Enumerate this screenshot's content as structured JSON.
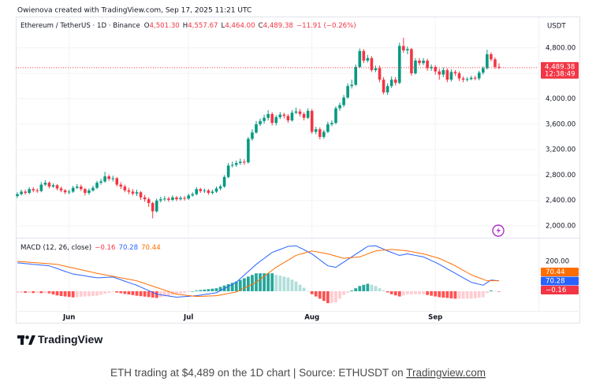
{
  "header": "Owienova created with TradingView.com, Sep 17, 2025 11:21 UTC",
  "chart_data": [
    {
      "type": "candlestick",
      "title": "Ethereum / TetherUS · 1D · Binance",
      "legend": [
        {
          "key": "O",
          "value": "4,501.30"
        },
        {
          "key": "H",
          "value": "4,557.67"
        },
        {
          "key": "L",
          "value": "4,464.00"
        },
        {
          "key": "C",
          "value": "4,489.38"
        }
      ],
      "change": "−11.91 (−0.26%)",
      "legend_color": "#f23645",
      "currency": "USDT",
      "colors": {
        "up": "#089981",
        "down": "#f23645"
      },
      "open": [
        2470,
        2500,
        2540,
        2520,
        2580,
        2560,
        2550,
        2650,
        2680,
        2620,
        2640,
        2590,
        2560,
        2530,
        2540,
        2600,
        2620,
        2580,
        2520,
        2560,
        2600,
        2680,
        2700,
        2780,
        2740,
        2750,
        2650,
        2620,
        2560,
        2540,
        2510,
        2530,
        2450,
        2420,
        2360,
        2230,
        2400,
        2420,
        2430,
        2410,
        2450,
        2420,
        2440,
        2430,
        2480,
        2500,
        2580,
        2550,
        2560,
        2520,
        2540,
        2590,
        2620,
        2770,
        2950,
        2960,
        2990,
        3010,
        3000,
        3370,
        3470,
        3600,
        3650,
        3700,
        3760,
        3620,
        3710,
        3750,
        3730,
        3660,
        3780,
        3800,
        3760,
        3700,
        3810,
        3480,
        3520,
        3400,
        3480,
        3600,
        3620,
        3850,
        3900,
        4020,
        4200,
        4220,
        4500,
        4750,
        4600,
        4640,
        4450,
        4480,
        4300,
        4100,
        4200,
        4300,
        4250,
        4830,
        4760,
        4780,
        4400,
        4600,
        4560,
        4600,
        4480,
        4500,
        4430,
        4380,
        4450,
        4300,
        4420,
        4400,
        4320,
        4300,
        4310,
        4330,
        4320,
        4410,
        4480,
        4700,
        4620,
        4501.3
      ],
      "high": [
        2530,
        2570,
        2570,
        2610,
        2610,
        2590,
        2690,
        2720,
        2700,
        2670,
        2660,
        2620,
        2580,
        2570,
        2630,
        2660,
        2650,
        2600,
        2590,
        2630,
        2710,
        2740,
        2850,
        2810,
        2790,
        2770,
        2690,
        2650,
        2600,
        2580,
        2570,
        2550,
        2490,
        2450,
        2380,
        2430,
        2460,
        2470,
        2460,
        2480,
        2470,
        2470,
        2470,
        2510,
        2530,
        2610,
        2600,
        2590,
        2580,
        2570,
        2620,
        2650,
        2800,
        2990,
        3010,
        3030,
        3060,
        3050,
        3400,
        3520,
        3650,
        3690,
        3750,
        3820,
        3790,
        3740,
        3790,
        3780,
        3760,
        3820,
        3860,
        3840,
        3790,
        3850,
        3840,
        3560,
        3550,
        3510,
        3640,
        3660,
        3880,
        3940,
        4060,
        4240,
        4300,
        4540,
        4790,
        4780,
        4690,
        4670,
        4520,
        4520,
        4340,
        4240,
        4350,
        4340,
        4880,
        4960,
        4820,
        4800,
        4640,
        4640,
        4640,
        4630,
        4540,
        4530,
        4470,
        4490,
        4480,
        4460,
        4450,
        4430,
        4350,
        4340,
        4360,
        4360,
        4440,
        4510,
        4770,
        4730,
        4650,
        4557.67
      ],
      "low": [
        2440,
        2480,
        2490,
        2500,
        2530,
        2520,
        2530,
        2630,
        2590,
        2600,
        2560,
        2530,
        2500,
        2500,
        2520,
        2580,
        2550,
        2480,
        2490,
        2540,
        2580,
        2650,
        2680,
        2710,
        2700,
        2620,
        2580,
        2530,
        2500,
        2480,
        2470,
        2410,
        2380,
        2300,
        2120,
        2210,
        2370,
        2390,
        2380,
        2390,
        2390,
        2400,
        2400,
        2410,
        2460,
        2480,
        2520,
        2520,
        2490,
        2500,
        2520,
        2560,
        2600,
        2750,
        2920,
        2930,
        2960,
        2960,
        2980,
        3340,
        3450,
        3570,
        3610,
        3660,
        3580,
        3580,
        3680,
        3690,
        3620,
        3640,
        3760,
        3720,
        3660,
        3680,
        3450,
        3440,
        3360,
        3370,
        3460,
        3570,
        3600,
        3810,
        3870,
        4000,
        4160,
        4200,
        4480,
        4560,
        4570,
        4420,
        4420,
        4260,
        4070,
        4060,
        4170,
        4210,
        4230,
        4720,
        4700,
        4360,
        4380,
        4520,
        4530,
        4440,
        4440,
        4380,
        4300,
        4340,
        4260,
        4270,
        4360,
        4280,
        4260,
        4270,
        4290,
        4290,
        4290,
        4380,
        4460,
        4590,
        4470,
        4464
      ],
      "close": [
        2500,
        2540,
        2520,
        2580,
        2560,
        2550,
        2650,
        2680,
        2620,
        2640,
        2590,
        2560,
        2530,
        2540,
        2600,
        2620,
        2580,
        2520,
        2560,
        2600,
        2680,
        2700,
        2780,
        2740,
        2750,
        2650,
        2620,
        2560,
        2540,
        2510,
        2530,
        2450,
        2420,
        2360,
        2230,
        2400,
        2420,
        2430,
        2410,
        2450,
        2420,
        2440,
        2430,
        2480,
        2500,
        2580,
        2550,
        2560,
        2520,
        2540,
        2590,
        2620,
        2770,
        2950,
        2960,
        2990,
        3010,
        3000,
        3370,
        3470,
        3600,
        3650,
        3700,
        3760,
        3620,
        3710,
        3750,
        3730,
        3660,
        3780,
        3800,
        3760,
        3700,
        3810,
        3480,
        3520,
        3400,
        3480,
        3600,
        3620,
        3850,
        3900,
        4020,
        4200,
        4220,
        4500,
        4750,
        4600,
        4640,
        4450,
        4480,
        4300,
        4100,
        4200,
        4300,
        4250,
        4830,
        4760,
        4780,
        4400,
        4600,
        4560,
        4600,
        4480,
        4500,
        4430,
        4380,
        4450,
        4300,
        4420,
        4400,
        4320,
        4300,
        4310,
        4330,
        4320,
        4410,
        4480,
        4700,
        4620,
        4501.3,
        4489.38
      ],
      "xlim": [
        -0.4,
        130.9
      ],
      "xticks": [
        {
          "value": 13,
          "label": "Jun"
        },
        {
          "value": 43,
          "label": "Jul"
        },
        {
          "value": 74,
          "label": "Aug"
        },
        {
          "value": 105,
          "label": "Sep"
        }
      ],
      "ylim": [
        1840,
        5280
      ],
      "yticks": [
        {
          "value": 2000,
          "label": "2,000.00"
        },
        {
          "value": 2400,
          "label": "2,400.00"
        },
        {
          "value": 2800,
          "label": "2,800.00"
        },
        {
          "value": 3200,
          "label": "3,200.00"
        },
        {
          "value": 3600,
          "label": "3,600.00"
        },
        {
          "value": 4000,
          "label": "4,000.00"
        },
        {
          "value": 4400,
          "label": "4,400.00"
        },
        {
          "value": 4800,
          "label": "4,800.00"
        }
      ],
      "grid": true,
      "last_price": {
        "value": 4489.38,
        "label": "4,489.38"
      },
      "countdown": "12:38:49"
    },
    {
      "type": "macd",
      "title": "MACD (12, 26, close)",
      "hist_colors": [
        "#26a69a",
        "#b2dfdb",
        "#ffcdd2",
        "#ff5252"
      ],
      "series": [
        {
          "kind": "histogram",
          "last_label": "−0.16",
          "color": "#f23645",
          "values": [
            -10,
            -10,
            -11,
            -11,
            -12,
            -12,
            -13,
            -13,
            -14,
            -21,
            -28,
            -32,
            -35,
            -38,
            -41,
            -39,
            -37,
            -35,
            -34,
            -32,
            -30,
            -24,
            -17,
            -11,
            -5,
            -9,
            -13,
            -18,
            -22,
            -26,
            -30,
            -33,
            -36,
            -39,
            -42,
            -45,
            -40,
            -35,
            -30,
            -25,
            -20,
            -15,
            -10,
            -5,
            0,
            5,
            8,
            11,
            14,
            17,
            20,
            29,
            38,
            47,
            56,
            65,
            76,
            87,
            98,
            109,
            120,
            120,
            120,
            120,
            120,
            110,
            104,
            98,
            92,
            78,
            65,
            43,
            23,
            1,
            -20,
            -35,
            -50,
            -65,
            -80,
            -78,
            -75,
            -50,
            -25,
            -10,
            5,
            20,
            35,
            43,
            50,
            43,
            35,
            20,
            7,
            -8,
            -20,
            -28,
            -35,
            -28,
            -20,
            -20,
            -20,
            -20,
            -20,
            -25,
            -30,
            -35,
            -40,
            -43,
            -45,
            -48,
            -50,
            -50,
            -50,
            -50,
            -50,
            -47,
            -43,
            -40,
            -12,
            5,
            2,
            -0.16
          ]
        },
        {
          "kind": "line",
          "last_label": "70.28",
          "color": "#2962ff",
          "values": [
            190,
            188,
            185,
            183,
            180,
            178,
            175,
            173,
            170,
            161,
            152,
            142,
            133,
            124,
            115,
            111,
            107,
            103,
            98,
            94,
            90,
            91,
            93,
            94,
            95,
            86,
            77,
            67,
            58,
            49,
            40,
            28,
            16,
            4,
            -8,
            -20,
            -24,
            -28,
            -32,
            -36,
            -40,
            -38,
            -36,
            -34,
            -32,
            -30,
            -26,
            -22,
            -18,
            -14,
            -10,
            4,
            18,
            32,
            46,
            60,
            84,
            108,
            132,
            156,
            180,
            200,
            220,
            240,
            260,
            270,
            280,
            290,
            300,
            302,
            305,
            291,
            278,
            264,
            250,
            230,
            210,
            190,
            170,
            165,
            160,
            178,
            195,
            213,
            230,
            248,
            265,
            283,
            300,
            303,
            305,
            293,
            282,
            270,
            260,
            250,
            240,
            245,
            250,
            245,
            240,
            235,
            230,
            218,
            205,
            193,
            180,
            165,
            150,
            135,
            120,
            105,
            90,
            75,
            60,
            53,
            47,
            40,
            58,
            75,
            72,
            70.28
          ]
        },
        {
          "kind": "line",
          "last_label": "70.44",
          "color": "#ff6d00",
          "values": [
            200,
            198,
            196,
            194,
            192,
            190,
            188,
            186,
            184,
            182,
            180,
            174,
            168,
            162,
            156,
            150,
            144,
            138,
            132,
            126,
            120,
            115,
            110,
            105,
            100,
            95,
            90,
            85,
            80,
            75,
            70,
            61,
            52,
            43,
            34,
            25,
            16,
            7,
            -2,
            -11,
            -20,
            -23,
            -26,
            -29,
            -32,
            -35,
            -34,
            -33,
            -32,
            -31,
            -30,
            -25,
            -20,
            -15,
            -10,
            -5,
            8,
            21,
            34,
            47,
            60,
            80,
            100,
            120,
            140,
            160,
            176,
            192,
            208,
            224,
            240,
            248,
            255,
            263,
            270,
            265,
            260,
            255,
            250,
            243,
            235,
            228,
            220,
            223,
            225,
            228,
            230,
            240,
            250,
            260,
            270,
            273,
            275,
            278,
            280,
            278,
            275,
            273,
            270,
            265,
            260,
            255,
            250,
            243,
            235,
            228,
            220,
            208,
            195,
            183,
            170,
            155,
            140,
            125,
            110,
            100,
            90,
            80,
            70,
            70,
            70,
            70.44
          ]
        }
      ],
      "ylim": [
        -132,
        353
      ],
      "yticks": [
        {
          "value": 200,
          "label": "200.00"
        }
      ]
    }
  ],
  "logo": "TradingView",
  "caption": "ETH trading at $4,489 on the 1D chart | Source: ETHUSDT on ",
  "caption_link": "Tradingview.com"
}
